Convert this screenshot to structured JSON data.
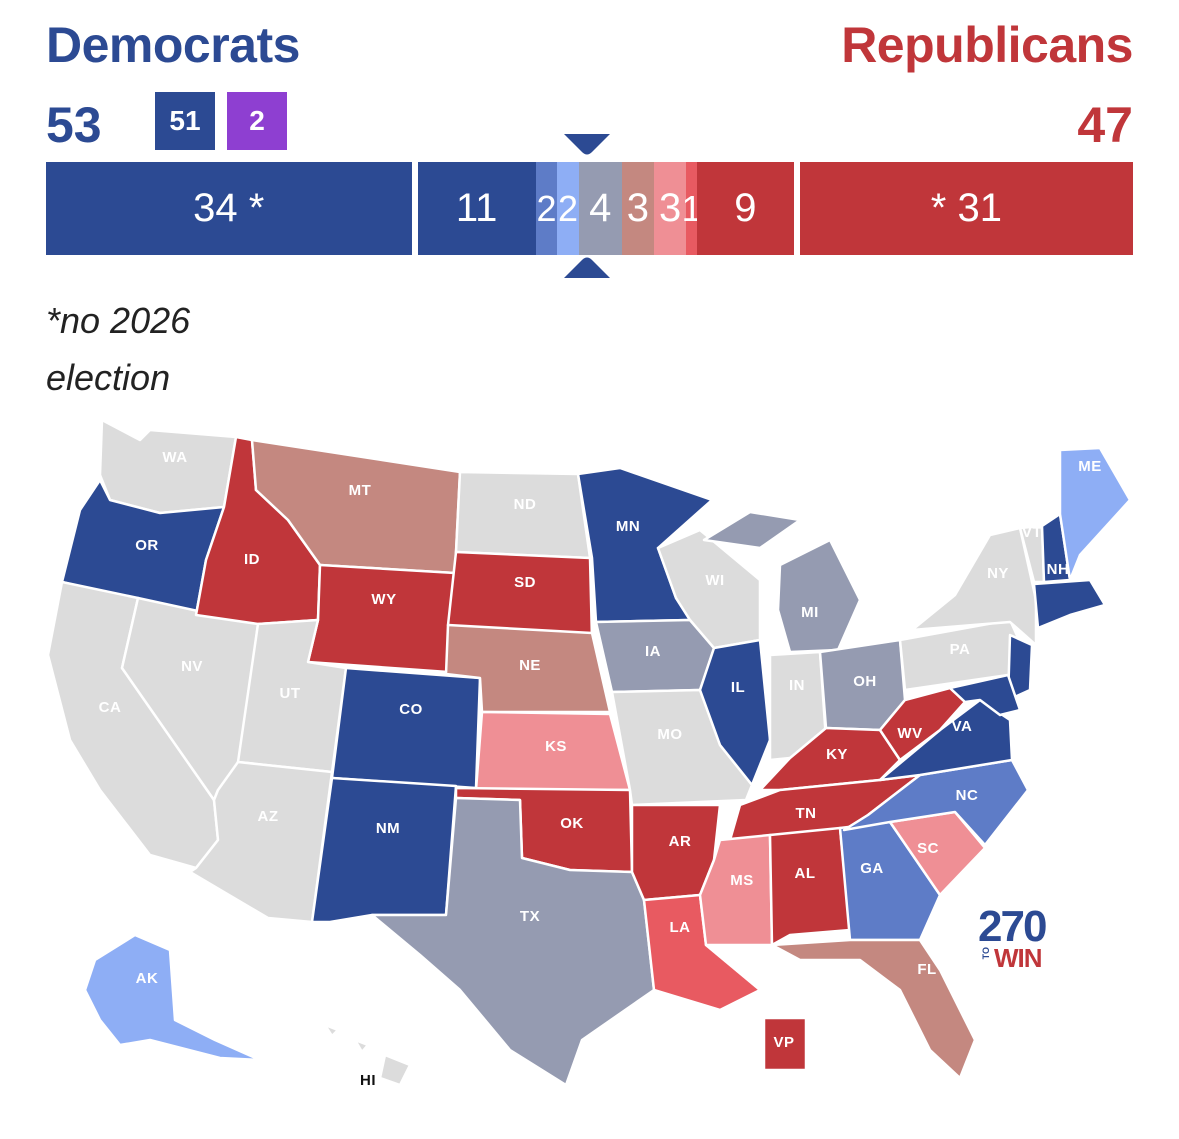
{
  "header": {
    "dem_label": "Democrats",
    "rep_label": "Republicans",
    "dem_total": "53",
    "rep_total": "47",
    "dem_caucus_badge": "51",
    "ind_caucus_badge": "2"
  },
  "seat_bar": [
    {
      "label": "34 *",
      "seats": 34,
      "color": "#2c4a93"
    },
    {
      "label": "11",
      "seats": 11,
      "color": "#2c4a93"
    },
    {
      "label": "2",
      "seats": 2,
      "color": "#5e7cc7"
    },
    {
      "label": "2",
      "seats": 2,
      "color": "#8eaef5"
    },
    {
      "label": "4",
      "seats": 4,
      "color": "#959bb1"
    },
    {
      "label": "3",
      "seats": 3,
      "color": "#c48880"
    },
    {
      "label": "3",
      "seats": 3,
      "color": "#ef8f95"
    },
    {
      "label": "1",
      "seats": 1,
      "color": "#e85a61"
    },
    {
      "label": "9",
      "seats": 9,
      "color": "#c0363a"
    },
    {
      "label": "* 31",
      "seats": 31,
      "color": "#c0363a"
    }
  ],
  "footnote": "*no 2026 election",
  "colors": {
    "safe_dem": "#2c4a93",
    "likely_dem": "#5e7cc7",
    "lean_dem": "#8eaef5",
    "tossup": "#959bb1",
    "tilt_rep": "#c48880",
    "lean_rep": "#ef8f95",
    "likely_rep": "#e85a61",
    "safe_rep": "#c0363a",
    "no_election": "#dcdcdc",
    "independent": "#8e3fd1"
  },
  "states": [
    {
      "abbr": "WA",
      "rating": "no_election"
    },
    {
      "abbr": "OR",
      "rating": "safe_dem"
    },
    {
      "abbr": "CA",
      "rating": "no_election"
    },
    {
      "abbr": "NV",
      "rating": "no_election"
    },
    {
      "abbr": "ID",
      "rating": "safe_rep"
    },
    {
      "abbr": "MT",
      "rating": "tilt_rep"
    },
    {
      "abbr": "WY",
      "rating": "safe_rep"
    },
    {
      "abbr": "UT",
      "rating": "no_election"
    },
    {
      "abbr": "AZ",
      "rating": "no_election"
    },
    {
      "abbr": "CO",
      "rating": "safe_dem"
    },
    {
      "abbr": "NM",
      "rating": "safe_dem"
    },
    {
      "abbr": "ND",
      "rating": "no_election"
    },
    {
      "abbr": "SD",
      "rating": "safe_rep"
    },
    {
      "abbr": "NE",
      "rating": "tilt_rep"
    },
    {
      "abbr": "KS",
      "rating": "lean_rep"
    },
    {
      "abbr": "OK",
      "rating": "safe_rep"
    },
    {
      "abbr": "TX",
      "rating": "tossup"
    },
    {
      "abbr": "MN",
      "rating": "safe_dem"
    },
    {
      "abbr": "IA",
      "rating": "tossup"
    },
    {
      "abbr": "MO",
      "rating": "no_election"
    },
    {
      "abbr": "AR",
      "rating": "safe_rep"
    },
    {
      "abbr": "LA",
      "rating": "likely_rep"
    },
    {
      "abbr": "WI",
      "rating": "no_election"
    },
    {
      "abbr": "IL",
      "rating": "safe_dem"
    },
    {
      "abbr": "MI",
      "rating": "tossup"
    },
    {
      "abbr": "IN",
      "rating": "no_election"
    },
    {
      "abbr": "OH",
      "rating": "tossup"
    },
    {
      "abbr": "KY",
      "rating": "safe_rep"
    },
    {
      "abbr": "TN",
      "rating": "safe_rep"
    },
    {
      "abbr": "MS",
      "rating": "lean_rep"
    },
    {
      "abbr": "AL",
      "rating": "safe_rep"
    },
    {
      "abbr": "GA",
      "rating": "likely_dem"
    },
    {
      "abbr": "FL",
      "rating": "tilt_rep"
    },
    {
      "abbr": "SC",
      "rating": "lean_rep"
    },
    {
      "abbr": "NC",
      "rating": "likely_dem"
    },
    {
      "abbr": "VA",
      "rating": "safe_dem"
    },
    {
      "abbr": "WV",
      "rating": "safe_rep"
    },
    {
      "abbr": "PA",
      "rating": "no_election"
    },
    {
      "abbr": "NY",
      "rating": "no_election"
    },
    {
      "abbr": "VT",
      "rating": "no_election"
    },
    {
      "abbr": "NH",
      "rating": "safe_dem"
    },
    {
      "abbr": "ME",
      "rating": "lean_dem"
    },
    {
      "abbr": "AK",
      "rating": "lean_dem"
    },
    {
      "abbr": "HI",
      "rating": "no_election"
    },
    {
      "abbr": "VP",
      "rating": "safe_rep"
    }
  ],
  "logo": {
    "number": "270",
    "to": "TO",
    "win": "WIN"
  }
}
